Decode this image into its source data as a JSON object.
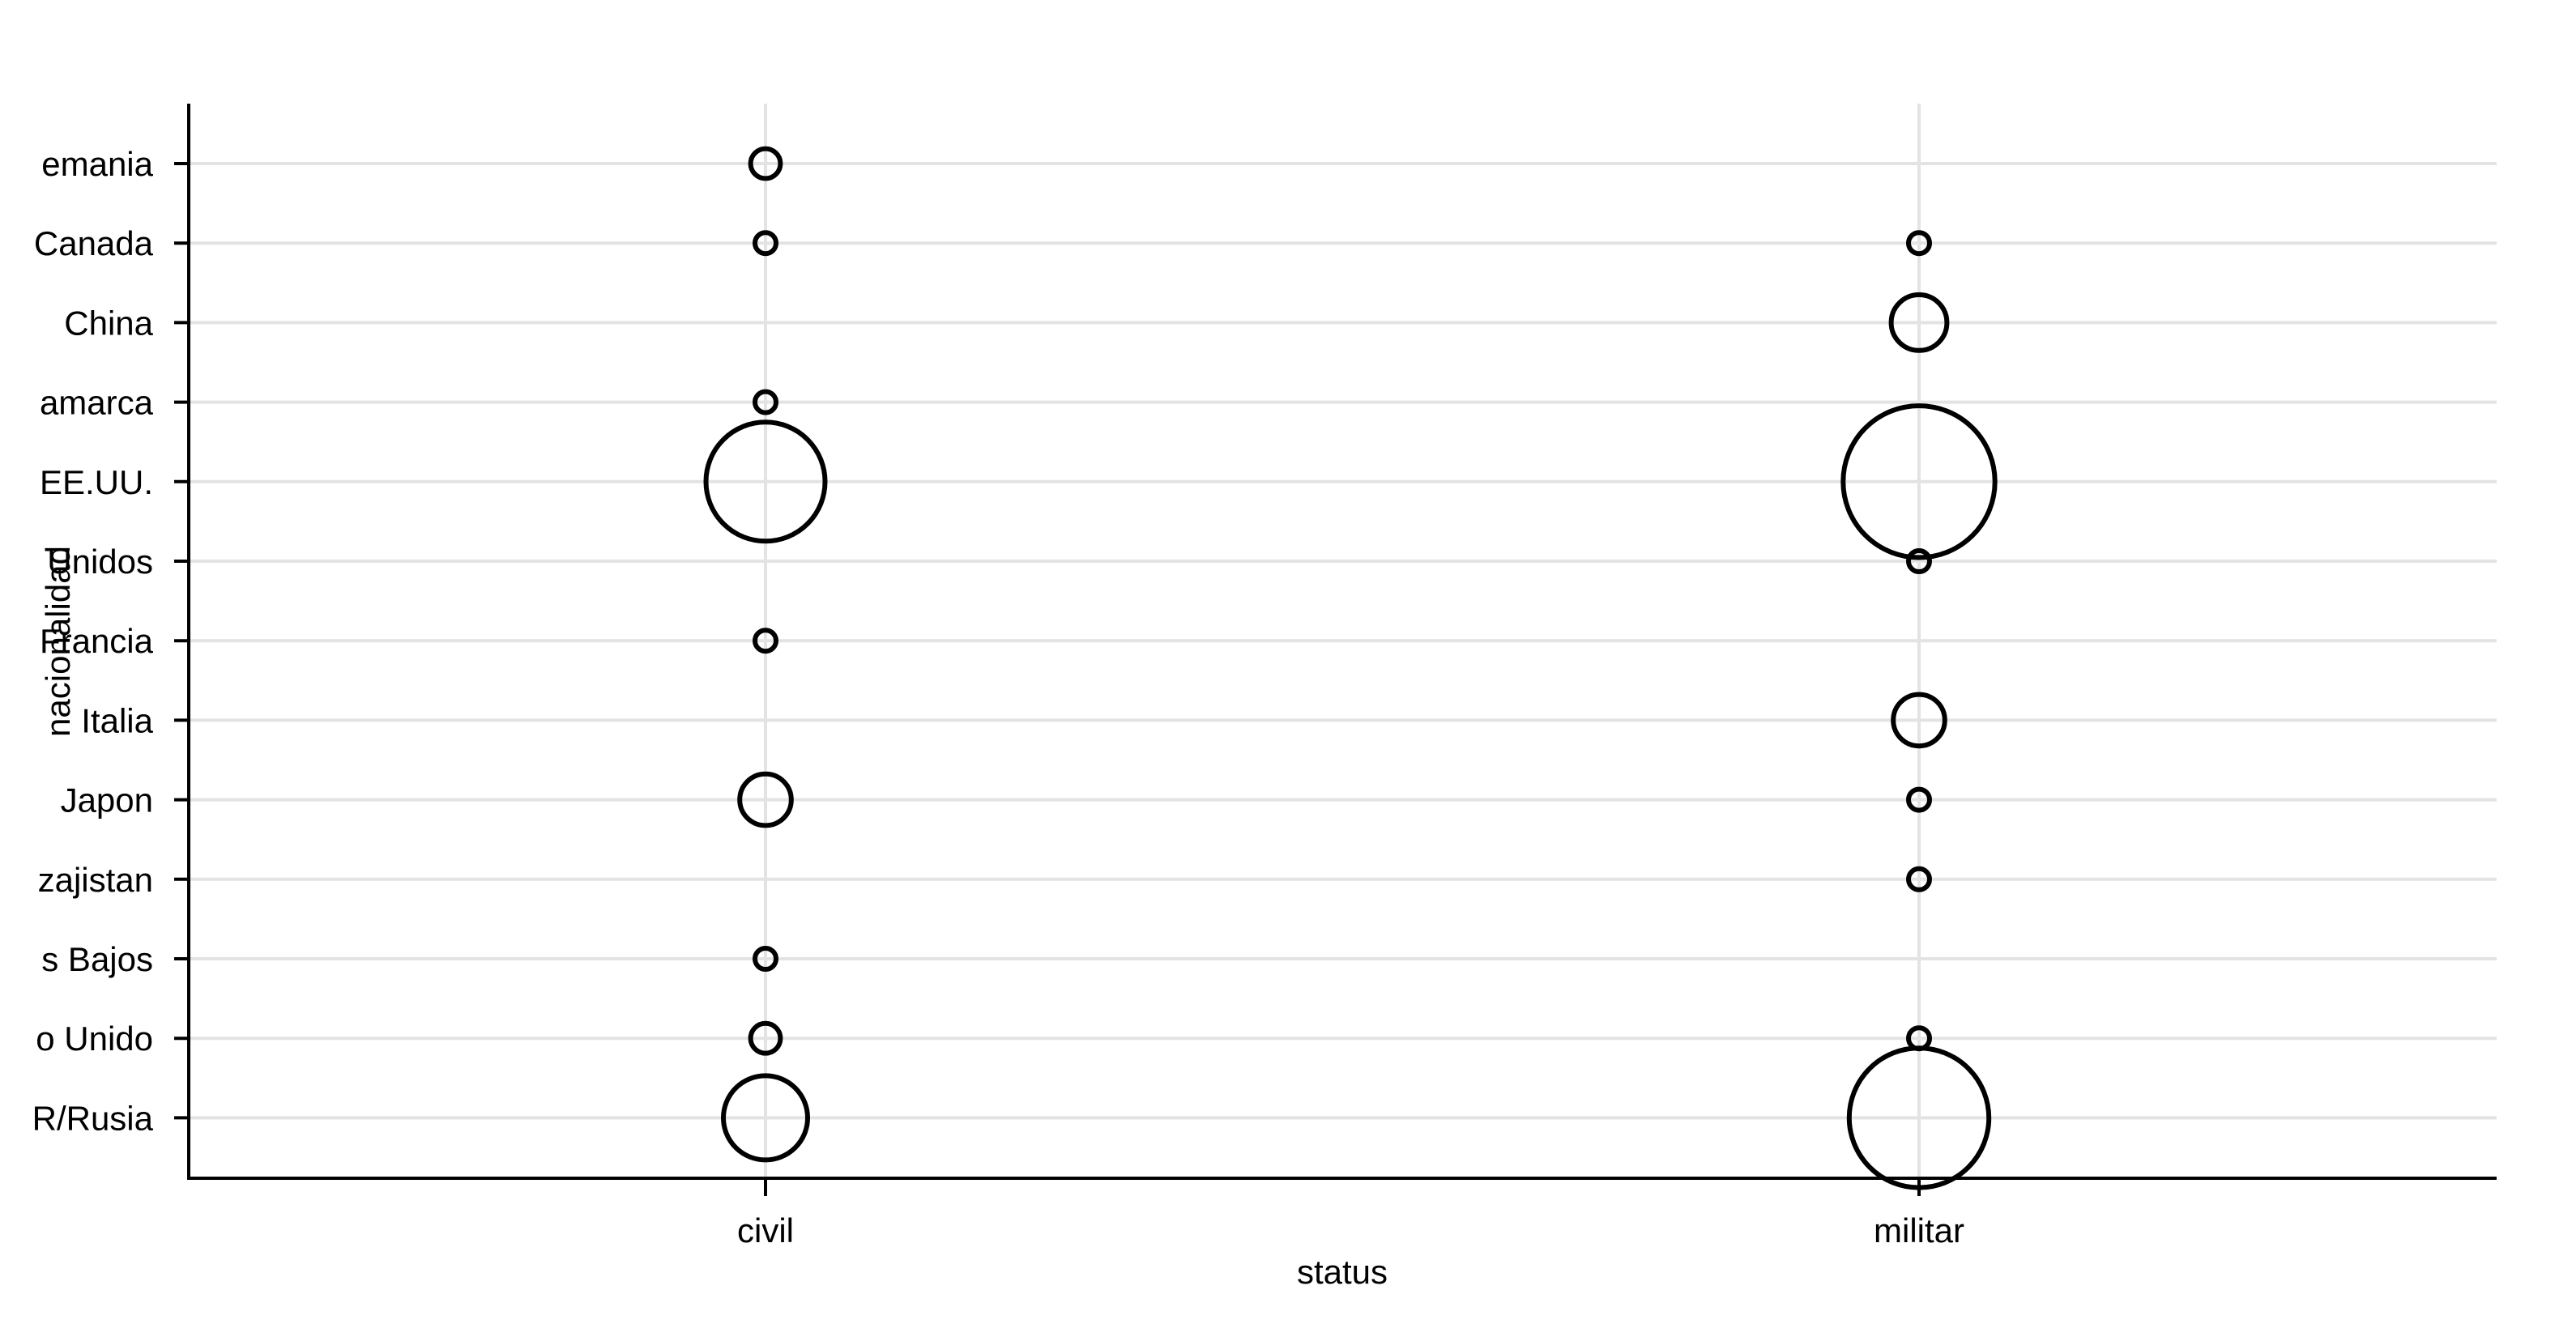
{
  "chart_data": {
    "type": "scatter",
    "xlabel": "status",
    "ylabel": "nacionalidad",
    "x_categories": [
      "civil",
      "militar"
    ],
    "y_categories": [
      "Alemania",
      "Canada",
      "China",
      "Dinamarca",
      "EE.UU.",
      "Estados Unidos",
      "Francia",
      "Italia",
      "Japon",
      "Kazajistan",
      "Paises Bajos",
      "Reino Unido",
      "URSS/Rusia"
    ],
    "y_tick_labels": [
      "emania",
      "Canada",
      "China",
      "amarca",
      "EE.UU.",
      "Unidos",
      "Francia",
      "Italia",
      "Japon",
      "zajistan",
      "s Bajos",
      "o Unido",
      "R/Rusia"
    ],
    "size_encoding": "count",
    "points": [
      {
        "x": "civil",
        "y": "Alemania",
        "count": 2
      },
      {
        "x": "civil",
        "y": "Canada",
        "count": 1
      },
      {
        "x": "civil",
        "y": "Dinamarca",
        "count": 1
      },
      {
        "x": "civil",
        "y": "EE.UU.",
        "count": 32
      },
      {
        "x": "civil",
        "y": "Francia",
        "count": 1
      },
      {
        "x": "civil",
        "y": "Japon",
        "count": 6
      },
      {
        "x": "civil",
        "y": "Paises Bajos",
        "count": 1
      },
      {
        "x": "civil",
        "y": "Reino Unido",
        "count": 2
      },
      {
        "x": "civil",
        "y": "URSS/Rusia",
        "count": 16
      },
      {
        "x": "militar",
        "y": "Canada",
        "count": 1
      },
      {
        "x": "militar",
        "y": "China",
        "count": 7
      },
      {
        "x": "militar",
        "y": "EE.UU.",
        "count": 52
      },
      {
        "x": "militar",
        "y": "Estados Unidos",
        "count": 1
      },
      {
        "x": "militar",
        "y": "Italia",
        "count": 6
      },
      {
        "x": "militar",
        "y": "Japon",
        "count": 1
      },
      {
        "x": "militar",
        "y": "Kazajistan",
        "count": 1
      },
      {
        "x": "militar",
        "y": "Reino Unido",
        "count": 1
      },
      {
        "x": "militar",
        "y": "URSS/Rusia",
        "count": 44
      }
    ],
    "grid": true,
    "legend": "none"
  }
}
